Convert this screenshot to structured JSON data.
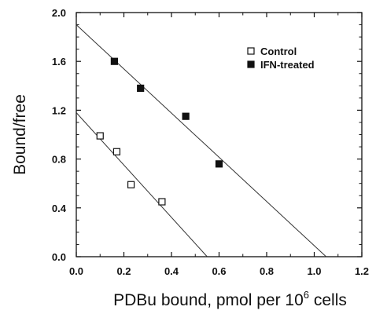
{
  "chart_data": {
    "type": "scatter",
    "xlabel": "PDBu bound, pmol per 10",
    "xlabel_sup": "6",
    "xlabel_suffix": " cells",
    "ylabel": "Bound/free",
    "xlim": [
      0,
      1.2
    ],
    "ylim": [
      0,
      2.0
    ],
    "xticks": [
      "0.0",
      "0.2",
      "0.4",
      "0.6",
      "0.8",
      "1.0",
      "1.2"
    ],
    "yticks": [
      "0.0",
      "0.4",
      "0.8",
      "1.2",
      "1.6",
      "2.0"
    ],
    "grid": false,
    "legend_position": "top-right",
    "series": [
      {
        "name": "Control",
        "marker": "open-square",
        "color": "#111111",
        "points": [
          [
            0.1,
            0.99
          ],
          [
            0.17,
            0.86
          ],
          [
            0.23,
            0.59
          ],
          [
            0.36,
            0.45
          ]
        ],
        "fit_line": [
          [
            0.0,
            1.18
          ],
          [
            0.55,
            0.0
          ]
        ]
      },
      {
        "name": "IFN-treated",
        "marker": "filled-square",
        "color": "#111111",
        "points": [
          [
            0.16,
            1.6
          ],
          [
            0.27,
            1.38
          ],
          [
            0.46,
            1.15
          ],
          [
            0.6,
            0.76
          ]
        ],
        "fit_line": [
          [
            0.0,
            1.9
          ],
          [
            1.05,
            0.0
          ]
        ]
      }
    ]
  }
}
